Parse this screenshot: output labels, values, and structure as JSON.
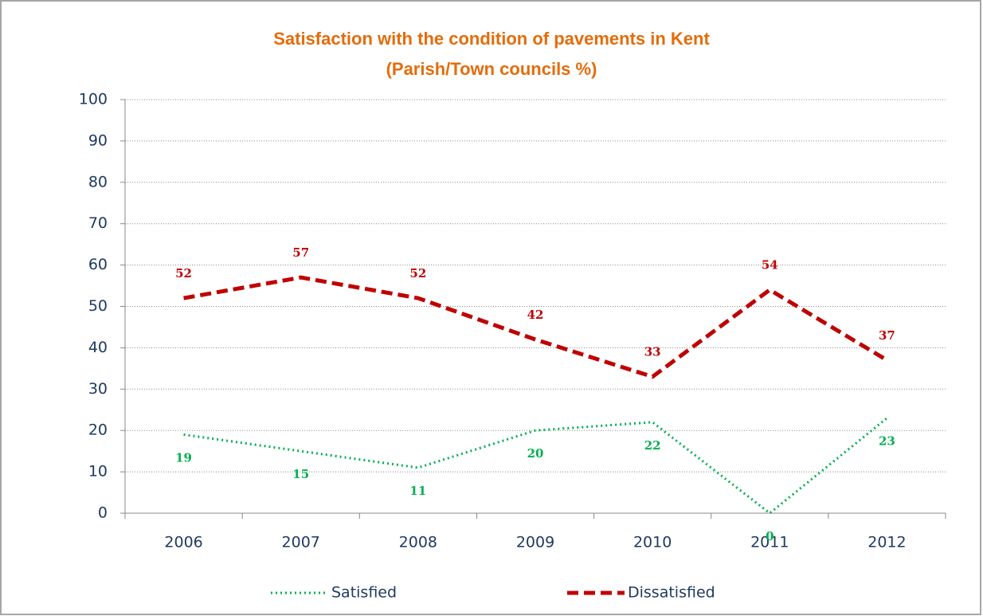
{
  "chart_data": {
    "type": "line",
    "title": "Satisfaction with the condition of pavements in Kent (Parish/Town councils %)",
    "categories": [
      "2006",
      "2007",
      "2008",
      "2009",
      "2010",
      "2011",
      "2012"
    ],
    "series": [
      {
        "name": "Satisfied",
        "color": "#00b050",
        "dash": "dotted",
        "values": [
          19,
          15,
          11,
          20,
          22,
          0,
          23
        ]
      },
      {
        "name": "Dissatisfied",
        "color": "#c00000",
        "dash": "dashed",
        "values": [
          52,
          57,
          52,
          42,
          33,
          54,
          37
        ]
      }
    ],
    "ylim": [
      0,
      100
    ],
    "yticks": [
      0,
      10,
      20,
      30,
      40,
      50,
      60,
      70,
      80,
      90,
      100
    ],
    "grid": true
  }
}
